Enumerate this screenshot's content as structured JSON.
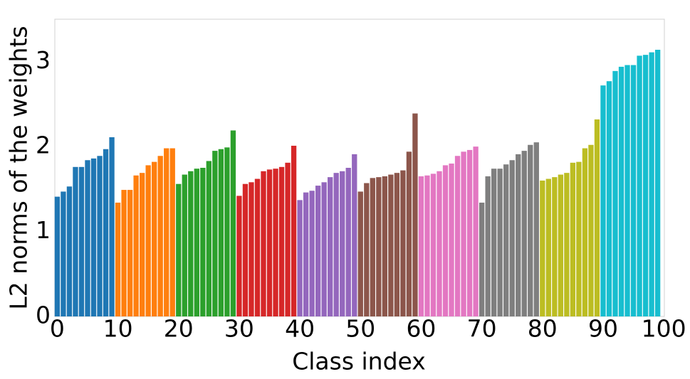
{
  "chart_data": {
    "type": "bar",
    "xlabel": "Class index",
    "ylabel": "L2 norms of the weights",
    "xlim": [
      -0.4,
      100.1
    ],
    "ylim": [
      0,
      3.5
    ],
    "xticks": [
      0,
      10,
      20,
      30,
      40,
      50,
      60,
      70,
      80,
      90,
      100
    ],
    "yticks": [
      0,
      1,
      2,
      3
    ],
    "grid": false,
    "series": [
      {
        "color": "#1f77b4",
        "x": [
          0,
          1,
          2,
          3,
          4,
          5,
          6,
          7,
          8,
          9
        ],
        "values": [
          1.41,
          1.47,
          1.53,
          1.76,
          1.76,
          1.84,
          1.86,
          1.89,
          1.97,
          2.11
        ]
      },
      {
        "color": "#ff7f0e",
        "x": [
          10,
          11,
          12,
          13,
          14,
          15,
          16,
          17,
          18,
          19
        ],
        "values": [
          1.34,
          1.49,
          1.49,
          1.66,
          1.69,
          1.78,
          1.82,
          1.89,
          1.98,
          1.98
        ]
      },
      {
        "color": "#2ca02c",
        "x": [
          20,
          21,
          22,
          23,
          24,
          25,
          26,
          27,
          28,
          29
        ],
        "values": [
          1.56,
          1.67,
          1.71,
          1.74,
          1.75,
          1.83,
          1.95,
          1.97,
          1.99,
          2.19
        ]
      },
      {
        "color": "#d62728",
        "x": [
          30,
          31,
          32,
          33,
          34,
          35,
          36,
          37,
          38,
          39
        ],
        "values": [
          1.42,
          1.56,
          1.58,
          1.62,
          1.71,
          1.73,
          1.74,
          1.76,
          1.81,
          2.01
        ]
      },
      {
        "color": "#9467bd",
        "x": [
          40,
          41,
          42,
          43,
          44,
          45,
          46,
          47,
          48,
          49
        ],
        "values": [
          1.37,
          1.46,
          1.48,
          1.54,
          1.58,
          1.64,
          1.69,
          1.71,
          1.75,
          1.91
        ]
      },
      {
        "color": "#8c564b",
        "x": [
          50,
          51,
          52,
          53,
          54,
          55,
          56,
          57,
          58,
          59
        ],
        "values": [
          1.47,
          1.57,
          1.63,
          1.64,
          1.65,
          1.67,
          1.69,
          1.72,
          1.94,
          2.39
        ]
      },
      {
        "color": "#e377c2",
        "x": [
          60,
          61,
          62,
          63,
          64,
          65,
          66,
          67,
          68,
          69
        ],
        "values": [
          1.65,
          1.66,
          1.68,
          1.71,
          1.78,
          1.8,
          1.89,
          1.94,
          1.96,
          2.0
        ]
      },
      {
        "color": "#7f7f7f",
        "x": [
          70,
          71,
          72,
          73,
          74,
          75,
          76,
          77,
          78,
          79
        ],
        "values": [
          1.34,
          1.65,
          1.74,
          1.74,
          1.79,
          1.84,
          1.91,
          1.95,
          2.02,
          2.05
        ]
      },
      {
        "color": "#bcbd22",
        "x": [
          80,
          81,
          82,
          83,
          84,
          85,
          86,
          87,
          88,
          89
        ],
        "values": [
          1.6,
          1.62,
          1.64,
          1.67,
          1.69,
          1.81,
          1.82,
          1.98,
          2.02,
          2.32
        ]
      },
      {
        "color": "#17becf",
        "x": [
          90,
          91,
          92,
          93,
          94,
          95,
          96,
          97,
          98,
          99
        ],
        "values": [
          2.72,
          2.77,
          2.89,
          2.94,
          2.96,
          2.96,
          3.07,
          3.08,
          3.11,
          3.14
        ]
      }
    ]
  }
}
